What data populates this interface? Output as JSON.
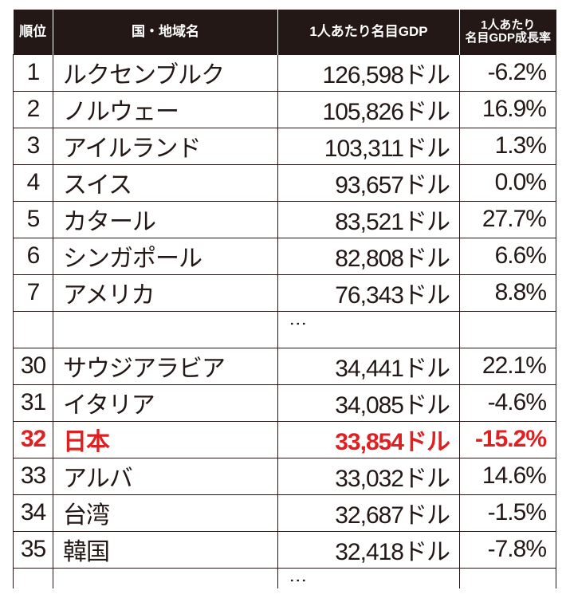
{
  "header": {
    "rank": "順位",
    "country": "国・地域名",
    "gdp": "1人あたり名目GDP",
    "growth_line1": "1人あたり",
    "growth_line2": "名目GDP成長率"
  },
  "ellipsis": "⋮",
  "top_rows": [
    {
      "rank": "1",
      "country": "ルクセンブルク",
      "gdp": "126,598ドル",
      "growth": "-6.2%"
    },
    {
      "rank": "2",
      "country": "ノルウェー",
      "gdp": "105,826ドル",
      "growth": "16.9%"
    },
    {
      "rank": "3",
      "country": "アイルランド",
      "gdp": "103,311ドル",
      "growth": "1.3%"
    },
    {
      "rank": "4",
      "country": "スイス",
      "gdp": "93,657ドル",
      "growth": "0.0%"
    },
    {
      "rank": "5",
      "country": "カタール",
      "gdp": "83,521ドル",
      "growth": "27.7%"
    },
    {
      "rank": "6",
      "country": "シンガポール",
      "gdp": "82,808ドル",
      "growth": "6.6%"
    },
    {
      "rank": "7",
      "country": "アメリカ",
      "gdp": "76,343ドル",
      "growth": "8.8%"
    }
  ],
  "bottom_rows": [
    {
      "rank": "30",
      "country": "サウジアラビア",
      "gdp": "34,441ドル",
      "growth": "22.1%"
    },
    {
      "rank": "31",
      "country": "イタリア",
      "gdp": "34,085ドル",
      "growth": "-4.6%"
    },
    {
      "rank": "32",
      "country": "日本",
      "gdp": "33,854ドル",
      "growth": "-15.2%",
      "highlight": true
    },
    {
      "rank": "33",
      "country": "アルバ",
      "gdp": "33,032ドル",
      "growth": "14.6%"
    },
    {
      "rank": "34",
      "country": "台湾",
      "gdp": "32,687ドル",
      "growth": "-1.5%"
    },
    {
      "rank": "35",
      "country": "韓国",
      "gdp": "32,418ドル",
      "growth": "-7.8%"
    }
  ],
  "colors": {
    "header_bg": "#231815",
    "highlight": "#e02020"
  }
}
